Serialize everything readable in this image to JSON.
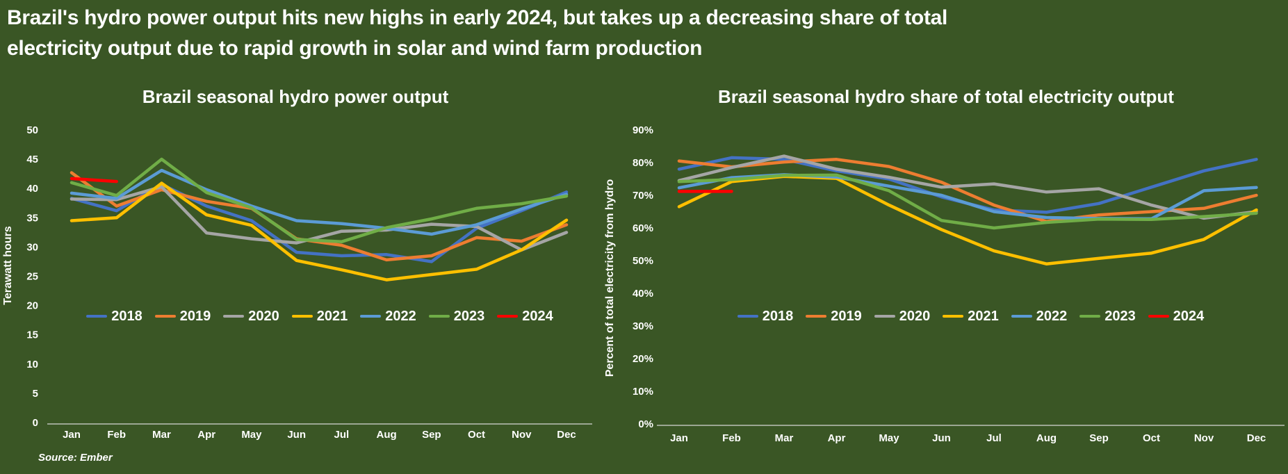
{
  "page": {
    "title_line1": "Brazil's hydro power output hits new highs in early 2024, but takes up a decreasing share of total",
    "title_line2": "electricity output due to rapid growth in solar and wind farm production",
    "source": "Source: Ember",
    "background_color": "#3A5625",
    "text_color": "#FFFFFF",
    "axis_line_color": "#D8D8D8"
  },
  "chart_data": [
    {
      "id": "hydro-output",
      "type": "line",
      "title": "Brazil seasonal hydro power output",
      "ylabel": "Terawatt hours",
      "categories": [
        "Jan",
        "Feb",
        "Mar",
        "Apr",
        "May",
        "Jun",
        "Jul",
        "Aug",
        "Sep",
        "Oct",
        "Nov",
        "Dec"
      ],
      "yticks": [
        "0",
        "5",
        "10",
        "15",
        "20",
        "25",
        "30",
        "35",
        "40",
        "45",
        "50"
      ],
      "ylim": [
        0,
        50
      ],
      "grid": false,
      "legend_position": "inside-bottom",
      "series": [
        {
          "name": "2018",
          "color": "#4472C4",
          "values": [
            38.3,
            36.2,
            40.7,
            37.0,
            34.5,
            29.1,
            28.5,
            28.7,
            27.5,
            33.2,
            36.2,
            39.4
          ]
        },
        {
          "name": "2019",
          "color": "#ED7D31",
          "values": [
            42.7,
            37.0,
            39.8,
            37.8,
            36.6,
            31.4,
            30.3,
            27.8,
            28.5,
            31.6,
            31.0,
            33.8
          ]
        },
        {
          "name": "2020",
          "color": "#A5A5A5",
          "values": [
            38.2,
            38.1,
            40.3,
            32.4,
            31.4,
            30.7,
            32.7,
            32.9,
            33.9,
            33.5,
            29.5,
            32.5
          ]
        },
        {
          "name": "2021",
          "color": "#FFC000",
          "values": [
            34.5,
            35.0,
            40.9,
            35.5,
            33.7,
            27.7,
            26.1,
            24.4,
            25.3,
            26.2,
            29.5,
            34.6
          ]
        },
        {
          "name": "2022",
          "color": "#5B9BD5",
          "values": [
            39.2,
            38.3,
            43.1,
            39.8,
            37.0,
            34.5,
            34.0,
            33.2,
            32.2,
            33.8,
            36.5,
            39.0
          ]
        },
        {
          "name": "2023",
          "color": "#70AD47",
          "values": [
            41.0,
            38.8,
            45.0,
            39.3,
            36.7,
            31.3,
            30.9,
            33.3,
            34.8,
            36.6,
            37.4,
            38.7
          ]
        },
        {
          "name": "2024",
          "color": "#FF0000",
          "values": [
            41.7,
            41.2
          ]
        }
      ]
    },
    {
      "id": "hydro-share",
      "type": "line",
      "title": "Brazil seasonal hydro share of total electricity output",
      "ylabel": "Percent of total electricity from hydro",
      "categories": [
        "Jan",
        "Feb",
        "Mar",
        "Apr",
        "May",
        "Jun",
        "Jul",
        "Aug",
        "Sep",
        "Oct",
        "Nov",
        "Dec"
      ],
      "yticks": [
        "0%",
        "10%",
        "20%",
        "30%",
        "40%",
        "50%",
        "60%",
        "70%",
        "80%",
        "90%"
      ],
      "ylim": [
        0,
        90
      ],
      "grid": false,
      "legend_position": "inside-bottom",
      "series": [
        {
          "name": "2018",
          "color": "#4472C4",
          "values": [
            78.0,
            81.5,
            81.0,
            77.5,
            75.0,
            69.5,
            65.5,
            64.8,
            67.5,
            72.5,
            77.5,
            81.0
          ]
        },
        {
          "name": "2019",
          "color": "#ED7D31",
          "values": [
            80.5,
            78.7,
            80.2,
            81.0,
            78.8,
            74.0,
            67.0,
            62.0,
            64.0,
            65.0,
            66.0,
            70.0
          ]
        },
        {
          "name": "2020",
          "color": "#A5A5A5",
          "values": [
            74.5,
            78.5,
            82.0,
            78.0,
            75.5,
            72.5,
            73.5,
            71.0,
            72.0,
            67.0,
            63.0,
            65.0
          ]
        },
        {
          "name": "2021",
          "color": "#FFC000",
          "values": [
            66.5,
            74.2,
            75.8,
            75.2,
            67.0,
            59.5,
            53.0,
            49.0,
            50.7,
            52.3,
            56.5,
            65.5
          ]
        },
        {
          "name": "2022",
          "color": "#5B9BD5",
          "values": [
            72.3,
            75.4,
            76.3,
            75.6,
            72.8,
            70.0,
            65.0,
            63.2,
            62.9,
            62.8,
            71.4,
            72.4
          ]
        },
        {
          "name": "2023",
          "color": "#70AD47",
          "values": [
            74.2,
            74.8,
            76.1,
            76.2,
            71.4,
            62.3,
            60.0,
            61.7,
            62.7,
            62.6,
            63.5,
            64.5
          ]
        },
        {
          "name": "2024",
          "color": "#FF0000",
          "values": [
            71.2,
            71.2
          ]
        }
      ]
    }
  ]
}
